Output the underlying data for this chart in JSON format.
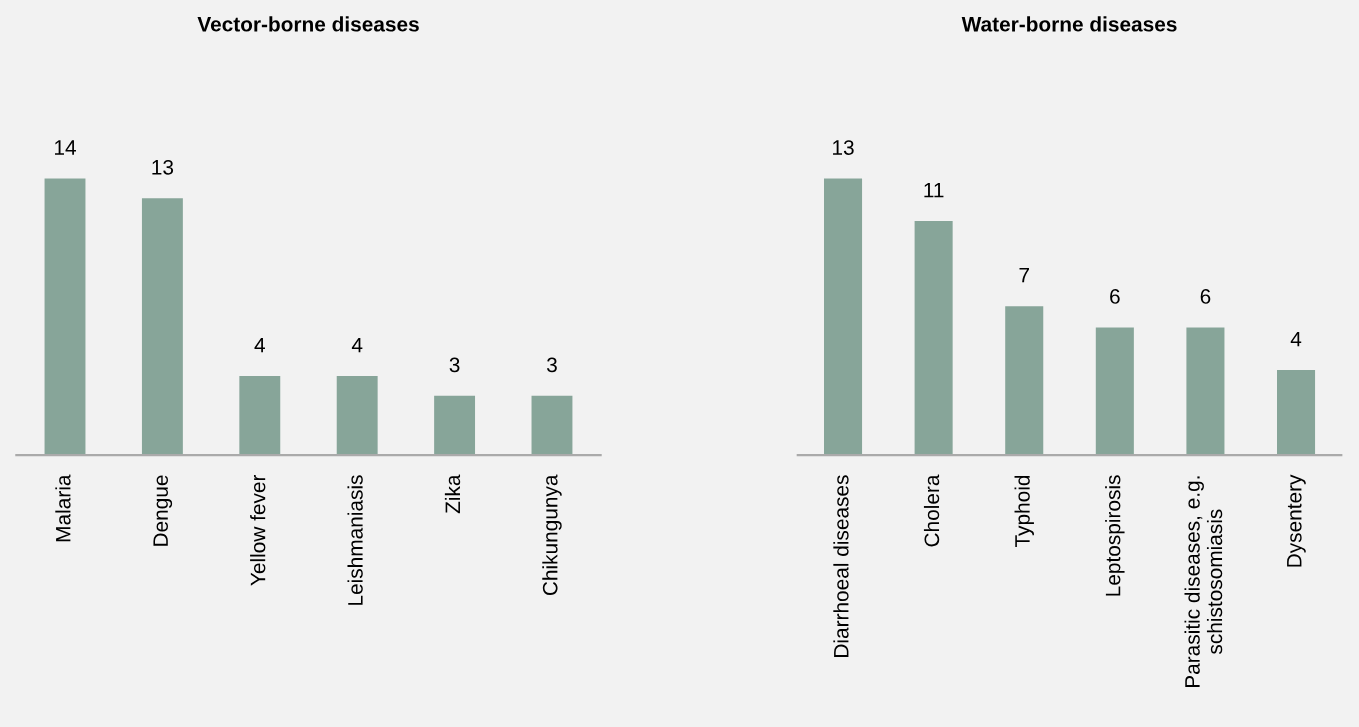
{
  "chart_data": [
    {
      "type": "bar",
      "title": "Vector-borne diseases",
      "categories": [
        "Malaria",
        "Dengue",
        "Yellow fever",
        "Leishmaniasis",
        "Zika",
        "Chikungunya"
      ],
      "values": [
        14,
        13,
        4,
        4,
        3,
        3
      ],
      "color": "#87a599",
      "data_labels": true,
      "tick_labels": "x",
      "grid": false,
      "legend": false
    },
    {
      "type": "bar",
      "title": "Water-borne diseases",
      "categories": [
        "Diarrhoeal diseases",
        "Cholera",
        "Typhoid",
        "Leptospirosis",
        "Parasitic diseases, e.g.\nschistosomiasis",
        "Dysentery"
      ],
      "values": [
        13,
        11,
        7,
        6,
        6,
        4
      ],
      "color": "#87a599",
      "data_labels": true,
      "tick_labels": "x",
      "grid": false,
      "legend": false
    }
  ]
}
